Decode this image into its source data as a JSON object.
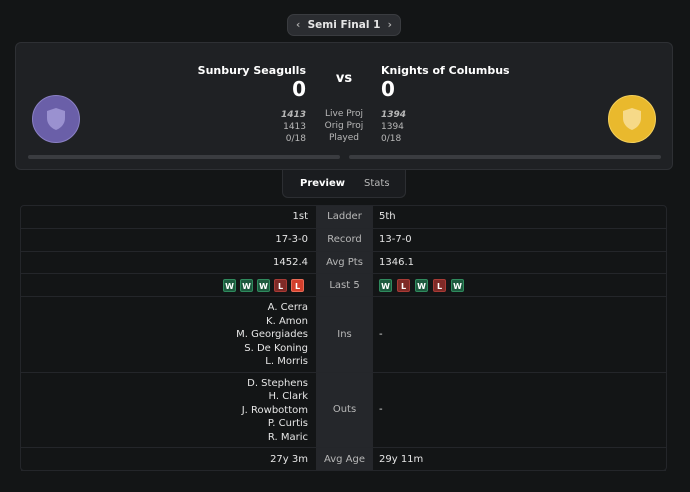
{
  "nav": {
    "round": "Semi Final 1"
  },
  "match": {
    "home": {
      "name": "Sunbury Seagulls",
      "score": 0,
      "live_proj": 1413,
      "orig_proj": 1413,
      "played": "0/18"
    },
    "vs": "vs",
    "labels": [
      "Live Proj",
      "Orig Proj",
      "Played"
    ],
    "away": {
      "name": "Knights of Columbus",
      "score": 0,
      "live_proj": 1394,
      "orig_proj": 1394,
      "played": "0/18"
    }
  },
  "tabs": [
    "Preview",
    "Stats"
  ],
  "table": {
    "rows": [
      {
        "label": "Ladder",
        "home": "1st",
        "away": "5th"
      },
      {
        "label": "Record",
        "home": "17-3-0",
        "away": "13-7-0"
      },
      {
        "label": "Avg Pts",
        "home": "1452.4",
        "away": "1346.1"
      },
      {
        "label": "Last 5",
        "home": [
          "W",
          "W",
          "W",
          "L",
          "L"
        ],
        "away": [
          "W",
          "L",
          "W",
          "L",
          "W"
        ]
      },
      {
        "label": "Ins",
        "home": [
          "A. Cerra",
          "K. Amon",
          "M. Georgiades",
          "S. De Koning",
          "L. Morris"
        ],
        "away": "-"
      },
      {
        "label": "Outs",
        "home": [
          "D. Stephens",
          "H. Clark",
          "J. Rowbottom",
          "P. Curtis",
          "R. Maric"
        ],
        "away": "-"
      },
      {
        "label": "Avg Age",
        "home": "27y 3m",
        "away": "29y 11m"
      }
    ]
  }
}
